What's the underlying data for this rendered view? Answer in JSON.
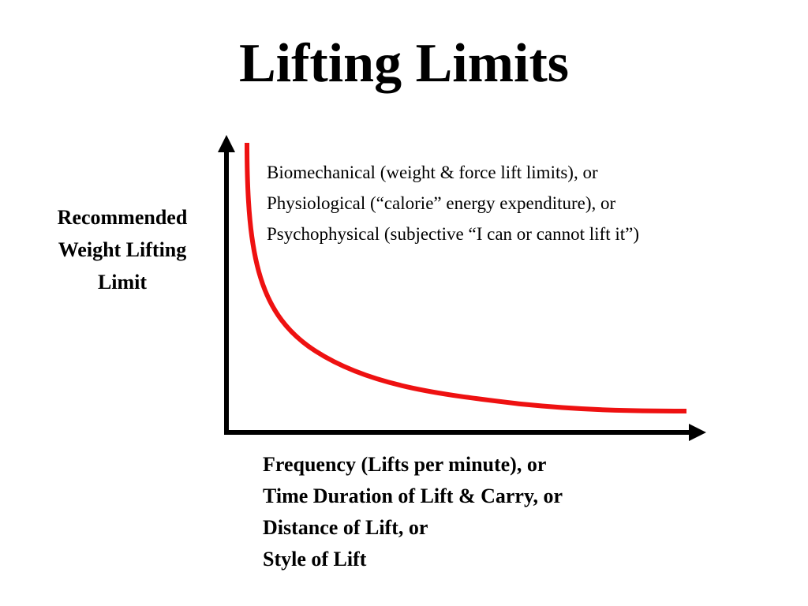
{
  "slide": {
    "title": "Lifting Limits"
  },
  "y_axis_label": {
    "lines": [
      "Recommended",
      "Weight Lifting",
      "Limit"
    ]
  },
  "curve_caption": {
    "lines": [
      "Biomechanical (weight & force lift limits), or",
      "Physiological (“calorie” energy expenditure), or",
      "Psychophysical (subjective “I can or cannot lift it”)"
    ]
  },
  "x_axis_label": {
    "lines": [
      "Frequency (Lifts per minute), or",
      "Time Duration of Lift & Carry, or",
      "Distance of Lift, or",
      "Style of Lift"
    ]
  },
  "colors": {
    "axis": "#000000",
    "curve": "#ee1111",
    "background": "#ffffff"
  }
}
